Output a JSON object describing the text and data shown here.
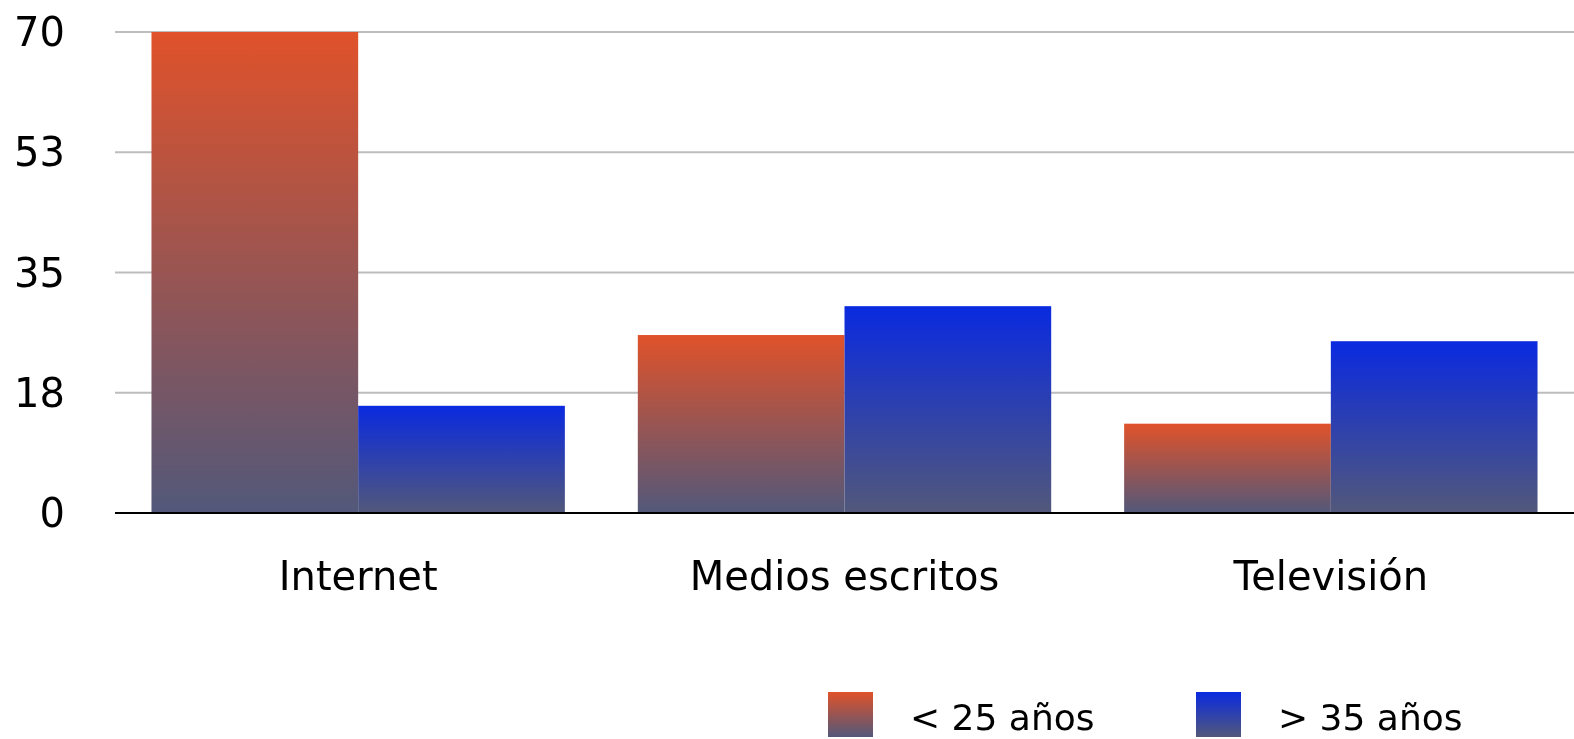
{
  "chart_data": {
    "type": "bar",
    "categories": [
      "Internet",
      "Medios escritos",
      "Televisión"
    ],
    "series": [
      {
        "name": "< 25 años",
        "color": "#e0522a",
        "values": [
          70,
          25.9,
          13
        ]
      },
      {
        "name": "> 35 años",
        "color": "#0a2ae0",
        "values": [
          15.6,
          30.1,
          25
        ]
      }
    ],
    "ylim": [
      0,
      70
    ],
    "yticks": [
      0,
      {
        "value": 17.5,
        "label": "18"
      },
      35,
      {
        "value": 52.5,
        "label": "53"
      },
      70
    ],
    "grid": "y",
    "legend": "bottom right"
  }
}
